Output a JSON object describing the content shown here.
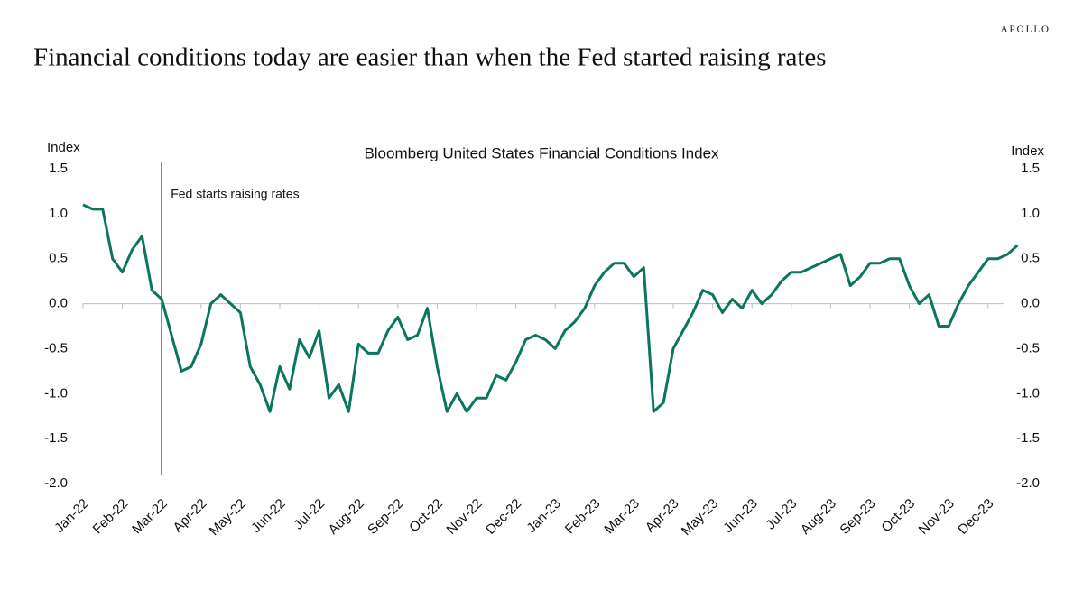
{
  "brand": "APOLLO",
  "headline": "Financial conditions today are easier than when the Fed started raising rates",
  "chart_data": {
    "type": "line",
    "title": "Bloomberg United States Financial Conditions Index",
    "ylabel": "Index",
    "y2label": "Index",
    "annotation": "Fed starts raising rates",
    "categories": [
      "Jan-22",
      "Feb-22",
      "Mar-22",
      "Apr-22",
      "May-22",
      "Jun-22",
      "Jul-22",
      "Aug-22",
      "Sep-22",
      "Oct-22",
      "Nov-22",
      "Dec-22",
      "Jan-23",
      "Feb-23",
      "Mar-23",
      "Apr-23",
      "May-23",
      "Jun-23",
      "Jul-23",
      "Aug-23",
      "Sep-23",
      "Oct-23",
      "Nov-23",
      "Dec-23"
    ],
    "series": [
      {
        "color": "#0b7560",
        "values": [
          [
            1.1,
            1.05,
            1.05,
            0.5
          ],
          [
            0.35,
            0.6,
            0.75,
            0.15
          ],
          [
            0.05,
            -0.35,
            -0.75,
            -0.7
          ],
          [
            -0.45,
            0.0,
            0.1,
            0.0
          ],
          [
            -0.1,
            -0.7,
            -0.9,
            -1.2
          ],
          [
            -0.7,
            -0.95,
            -0.4,
            -0.6
          ],
          [
            -0.3,
            -1.05,
            -0.9,
            -1.2
          ],
          [
            -0.45,
            -0.55,
            -0.55,
            -0.3
          ],
          [
            -0.15,
            -0.4,
            -0.35,
            -0.05
          ],
          [
            -0.7,
            -1.2,
            -1.0,
            -1.2
          ],
          [
            -1.05,
            -1.05,
            -0.8,
            -0.85
          ],
          [
            -0.65,
            -0.4,
            -0.35,
            -0.4
          ],
          [
            -0.5,
            -0.3,
            -0.2,
            -0.05
          ],
          [
            0.2,
            0.35,
            0.45,
            0.45
          ],
          [
            0.3,
            0.4,
            -1.2,
            -1.1
          ],
          [
            -0.5,
            -0.3,
            -0.1,
            0.15
          ],
          [
            0.1,
            -0.1,
            0.05,
            -0.05
          ],
          [
            0.15,
            0.0,
            0.1,
            0.25
          ],
          [
            0.35,
            0.35,
            0.4,
            0.45
          ],
          [
            0.5,
            0.55,
            0.2,
            0.3
          ],
          [
            0.45,
            0.45,
            0.5,
            0.5
          ],
          [
            0.2,
            0.0,
            0.1,
            -0.25
          ],
          [
            -0.25,
            0.0,
            0.2,
            0.35
          ],
          [
            0.5,
            0.5,
            0.55,
            0.65
          ]
        ]
      }
    ],
    "ylim": [
      -2,
      1.5
    ],
    "yticks": [
      {
        "value": 1.5,
        "label": "1.5"
      },
      {
        "value": 1,
        "label": "1.0"
      },
      {
        "value": 0.5,
        "label": "0.5"
      },
      {
        "value": 0,
        "label": "0.0"
      },
      {
        "value": -0.5,
        "label": "-0.5"
      },
      {
        "value": -1,
        "label": "-1.0"
      },
      {
        "value": -1.5,
        "label": "-1.5"
      },
      {
        "value": -2,
        "label": "-2.0"
      }
    ],
    "y2lim": [
      -2,
      1.5
    ],
    "y2ticks": [
      {
        "value": 1.5,
        "label": "1.5"
      },
      {
        "value": 1,
        "label": "1.0"
      },
      {
        "value": 0.5,
        "label": "0.5"
      },
      {
        "value": 0,
        "label": "0.0"
      },
      {
        "value": -0.5,
        "label": "-0.5"
      },
      {
        "value": -1,
        "label": "-1.0"
      },
      {
        "value": -1.5,
        "label": "-1.5"
      },
      {
        "value": -2,
        "label": "-2.0"
      }
    ]
  }
}
